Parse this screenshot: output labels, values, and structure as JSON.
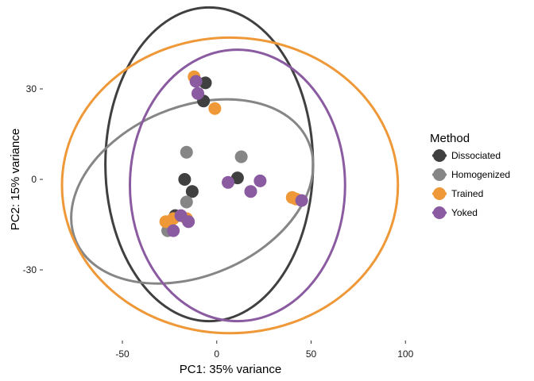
{
  "chart_data": {
    "type": "scatter",
    "xlabel": "PC1: 35% variance",
    "ylabel": "PC2: 15% variance",
    "xlim": [
      -78,
      112
    ],
    "ylim": [
      -49,
      52
    ],
    "xticks": [
      -50,
      0,
      50,
      100
    ],
    "yticks": [
      -30,
      0,
      30
    ],
    "grid": false,
    "legend": {
      "title": "Method",
      "position": "right"
    },
    "series": [
      {
        "name": "Dissociated",
        "color": "#404040",
        "points": [
          [
            -6,
            32
          ],
          [
            -7,
            26
          ],
          [
            -17,
            0
          ],
          [
            -13,
            -4
          ],
          [
            11,
            0.5
          ],
          [
            -22,
            -12
          ]
        ],
        "ellipse": {
          "cx": -4,
          "cy": 5,
          "rx": 55,
          "ry": 52,
          "angle": 0
        }
      },
      {
        "name": "Homogenized",
        "color": "#868686",
        "points": [
          [
            -16,
            9
          ],
          [
            13,
            7.5
          ],
          [
            -16,
            -7.5
          ],
          [
            -26,
            -17
          ]
        ],
        "ellipse": {
          "cx": -13,
          "cy": -4,
          "rx": 67,
          "ry": 28,
          "angle": 23
        }
      },
      {
        "name": "Trained",
        "color": "#EF9838",
        "points": [
          [
            -12,
            34
          ],
          [
            -1,
            23.5
          ],
          [
            -27,
            -14
          ],
          [
            -23,
            -13
          ],
          [
            -16,
            -13
          ],
          [
            40,
            -6
          ],
          [
            42,
            -6.5
          ]
        ],
        "ellipse": {
          "cx": 7,
          "cy": -2,
          "rx": 89,
          "ry": 49,
          "angle": 0
        }
      },
      {
        "name": "Yoked",
        "color": "#8A5BA0",
        "points": [
          [
            -11,
            32.5
          ],
          [
            -10,
            28.5
          ],
          [
            -19,
            -12
          ],
          [
            -15,
            -14
          ],
          [
            -23,
            -17
          ],
          [
            6,
            -1
          ],
          [
            18,
            -4
          ],
          [
            23,
            -0.5
          ],
          [
            45,
            -7
          ]
        ],
        "ellipse": {
          "cx": 11,
          "cy": -2,
          "rx": 57,
          "ry": 45,
          "angle": 0
        }
      }
    ]
  }
}
